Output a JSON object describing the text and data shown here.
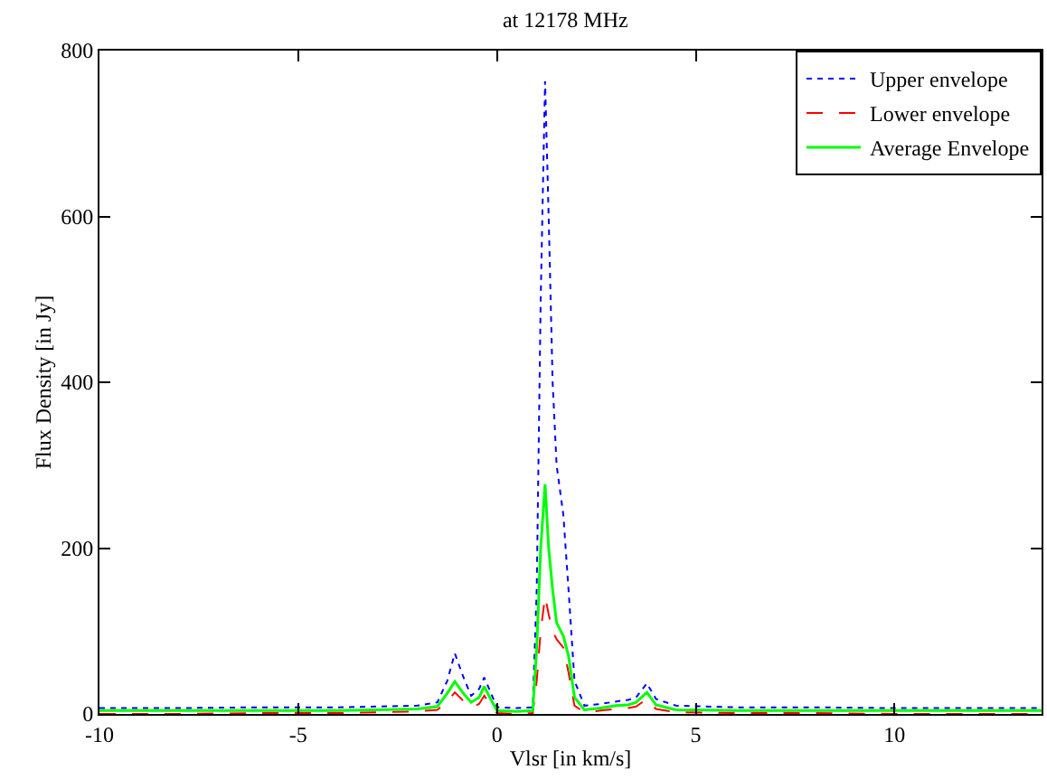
{
  "chart_data": {
    "type": "line",
    "title": "at 12178 MHz",
    "xlabel": "Vlsr [in km/s]",
    "ylabel": "Flux Density [in Jy]",
    "x": [
      -10,
      -8,
      -6,
      -4,
      -3,
      -2,
      -1.5,
      -1.25,
      -1.06,
      -0.85,
      -0.65,
      -0.45,
      -0.32,
      -0.15,
      0,
      0.5,
      0.9,
      1.0,
      1.1,
      1.21,
      1.3,
      1.4,
      1.5,
      1.67,
      1.8,
      1.95,
      2.2,
      2.6,
      3,
      3.3,
      3.5,
      3.77,
      4,
      4.5,
      6,
      8,
      10,
      12,
      13.7
    ],
    "xlim": [
      -10,
      13.7
    ],
    "xticks": [
      -10,
      -5,
      0,
      5,
      10
    ],
    "ylim": [
      0,
      800
    ],
    "yticks": [
      0,
      200,
      400,
      600,
      800
    ],
    "grid": false,
    "legend": "top right",
    "series": [
      {
        "name": "Upper envelope",
        "color": "#0000ff",
        "line_style": "dotted",
        "values": [
          7,
          7,
          8,
          8,
          9,
          10,
          14,
          40,
          73,
          45,
          22,
          30,
          44,
          25,
          8,
          7,
          8,
          150,
          500,
          763,
          600,
          400,
          300,
          240,
          150,
          40,
          10,
          12,
          15,
          17,
          20,
          37,
          18,
          10,
          8,
          8,
          7,
          7,
          7
        ]
      },
      {
        "name": "Lower envelope",
        "color": "#ff0000",
        "line_style": "dashed",
        "values": [
          0,
          0,
          1,
          1,
          2,
          3,
          5,
          15,
          26,
          16,
          8,
          12,
          22,
          10,
          1,
          0,
          1,
          40,
          100,
          142,
          120,
          100,
          90,
          80,
          50,
          10,
          2,
          4,
          6,
          7,
          9,
          18,
          6,
          2,
          1,
          1,
          0,
          0,
          0
        ]
      },
      {
        "name": "Average Envelope",
        "color": "#00ff00",
        "line_style": "solid",
        "values": [
          4,
          4,
          4,
          4,
          5,
          6,
          9,
          25,
          39,
          25,
          14,
          20,
          33,
          17,
          4,
          3,
          4,
          80,
          200,
          277,
          200,
          150,
          110,
          94,
          70,
          20,
          5,
          7,
          10,
          11,
          14,
          26,
          11,
          5,
          4,
          4,
          4,
          4,
          4
        ]
      }
    ]
  }
}
